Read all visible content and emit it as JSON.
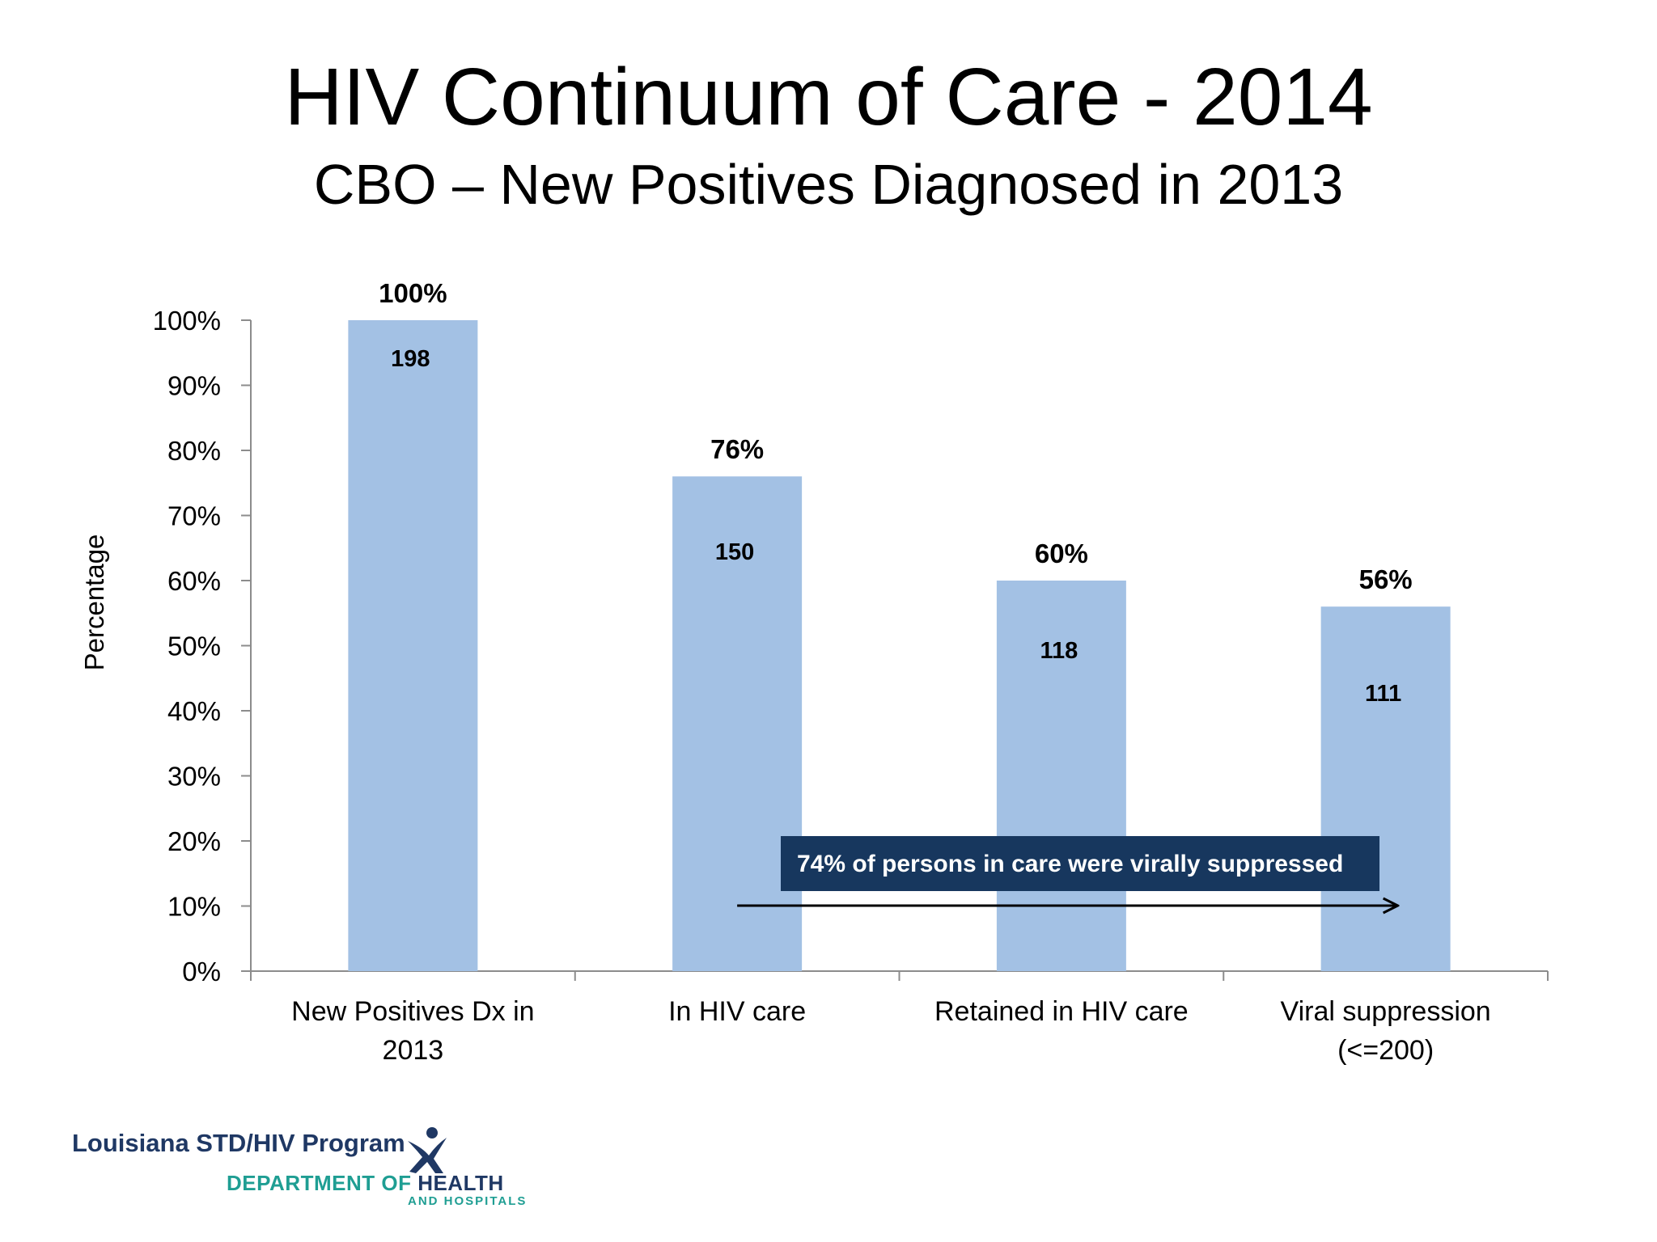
{
  "slide": {
    "title": "HIV Continuum of Care - 2014",
    "subtitle": "CBO – New Positives Diagnosed in 2013"
  },
  "chart_data": {
    "type": "bar",
    "categories": [
      [
        "New Positives Dx in",
        "2013"
      ],
      [
        "In HIV care"
      ],
      [
        "Retained in HIV care"
      ],
      [
        "Viral suppression",
        "(<=200)"
      ]
    ],
    "values": [
      100,
      76,
      60,
      56
    ],
    "value_labels": [
      "100%",
      "76%",
      "60%",
      "56%"
    ],
    "counts": [
      "198",
      "150",
      "118",
      "111"
    ],
    "ylabel": "Percentage",
    "ylim": [
      0,
      100
    ],
    "yticks": [
      "0%",
      "10%",
      "20%",
      "30%",
      "40%",
      "50%",
      "60%",
      "70%",
      "80%",
      "90%",
      "100%"
    ],
    "bar_color": "#a3c1e4",
    "annotation": {
      "text": "74% of persons in care were virally suppressed",
      "background": "#17375e",
      "arrow_from_category": 1,
      "arrow_to_category": 3
    }
  },
  "footer": {
    "program": "Louisiana STD/HIV Program",
    "dept_prefix": "DEPARTMENT OF",
    "dept_highlight": "HEALTH",
    "dept_sub": "AND HOSPITALS",
    "logo_icon": "dhh-person-logo-icon"
  }
}
